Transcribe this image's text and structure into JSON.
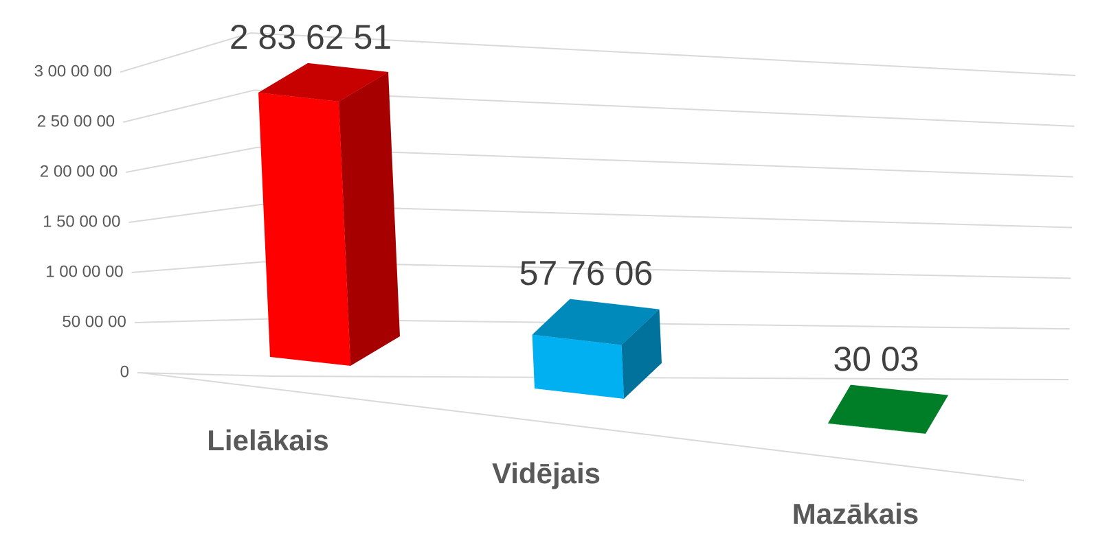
{
  "chart_data": {
    "type": "bar3d",
    "categories": [
      "Lielākais",
      "Vidējais",
      "Mazākais"
    ],
    "values": [
      2836251,
      577606,
      3003
    ],
    "value_labels": [
      "2 83 62 51",
      "57 76 06",
      "30 03"
    ],
    "colors": [
      "#ff0000",
      "#00b0f0",
      "#00a032"
    ],
    "ylim": [
      0,
      3000000
    ],
    "yticks": [
      0,
      {
        "value": 500000,
        "label": "50 00 00"
      },
      {
        "value": 1000000,
        "label": "1 00 00 00"
      },
      {
        "value": 1500000,
        "label": "1 50 00 00"
      },
      {
        "value": 2000000,
        "label": "2 00 00 00"
      },
      {
        "value": 2500000,
        "label": "2 50 00 00"
      },
      {
        "value": 3000000,
        "label": "3 00 00 00"
      }
    ],
    "grid": true
  }
}
